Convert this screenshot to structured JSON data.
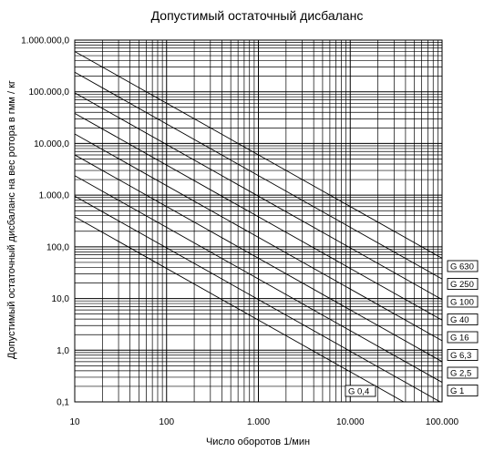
{
  "chart_data": {
    "type": "line",
    "title": "Допустимый остаточный дисбаланс",
    "xlabel": "Число оборотов 1/мин",
    "ylabel": "Допустимый остаточный дисбаланс на вес ротора в гмм / кг",
    "x_scale": "log",
    "y_scale": "log",
    "xlim": [
      10,
      100000
    ],
    "ylim": [
      0.1,
      1000000
    ],
    "grid": true,
    "x_ticks": [
      {
        "value": 10,
        "label": "10"
      },
      {
        "value": 100,
        "label": "100"
      },
      {
        "value": 1000,
        "label": "1.000"
      },
      {
        "value": 10000,
        "label": "10.000"
      },
      {
        "value": 100000,
        "label": "100.000"
      }
    ],
    "y_ticks": [
      {
        "value": 1000000,
        "label": "1.000.000,0"
      },
      {
        "value": 100000,
        "label": "100.000,0"
      },
      {
        "value": 10000,
        "label": "10.000,0"
      },
      {
        "value": 1000,
        "label": "1.000,0"
      },
      {
        "value": 100,
        "label": "100,0"
      },
      {
        "value": 10,
        "label": "10,0"
      },
      {
        "value": 1,
        "label": "1,0"
      },
      {
        "value": 0.1,
        "label": "0,1"
      }
    ],
    "series": [
      {
        "name": "G 630",
        "x": [
          10,
          100000
        ],
        "y": [
          601600,
          60.16
        ]
      },
      {
        "name": "G 250",
        "x": [
          10,
          100000
        ],
        "y": [
          238700,
          23.87
        ]
      },
      {
        "name": "G 100",
        "x": [
          10,
          100000
        ],
        "y": [
          95490,
          9.549
        ]
      },
      {
        "name": "G 40",
        "x": [
          10,
          100000
        ],
        "y": [
          38200,
          3.82
        ]
      },
      {
        "name": "G 16",
        "x": [
          10,
          100000
        ],
        "y": [
          15280,
          1.528
        ]
      },
      {
        "name": "G 6,3",
        "x": [
          10,
          100000
        ],
        "y": [
          6016,
          0.6016
        ]
      },
      {
        "name": "G 2,5",
        "x": [
          10,
          100000
        ],
        "y": [
          2387,
          0.2387
        ]
      },
      {
        "name": "G 1",
        "x": [
          10,
          100000
        ],
        "y": [
          954.9,
          0.09549
        ]
      },
      {
        "name": "G 0,4",
        "x": [
          10,
          100000
        ],
        "y": [
          382,
          0.0382
        ]
      }
    ],
    "series_label_placement": "right"
  },
  "colors": {
    "grid": "#000000",
    "series": "#000000",
    "background": "#ffffff"
  }
}
